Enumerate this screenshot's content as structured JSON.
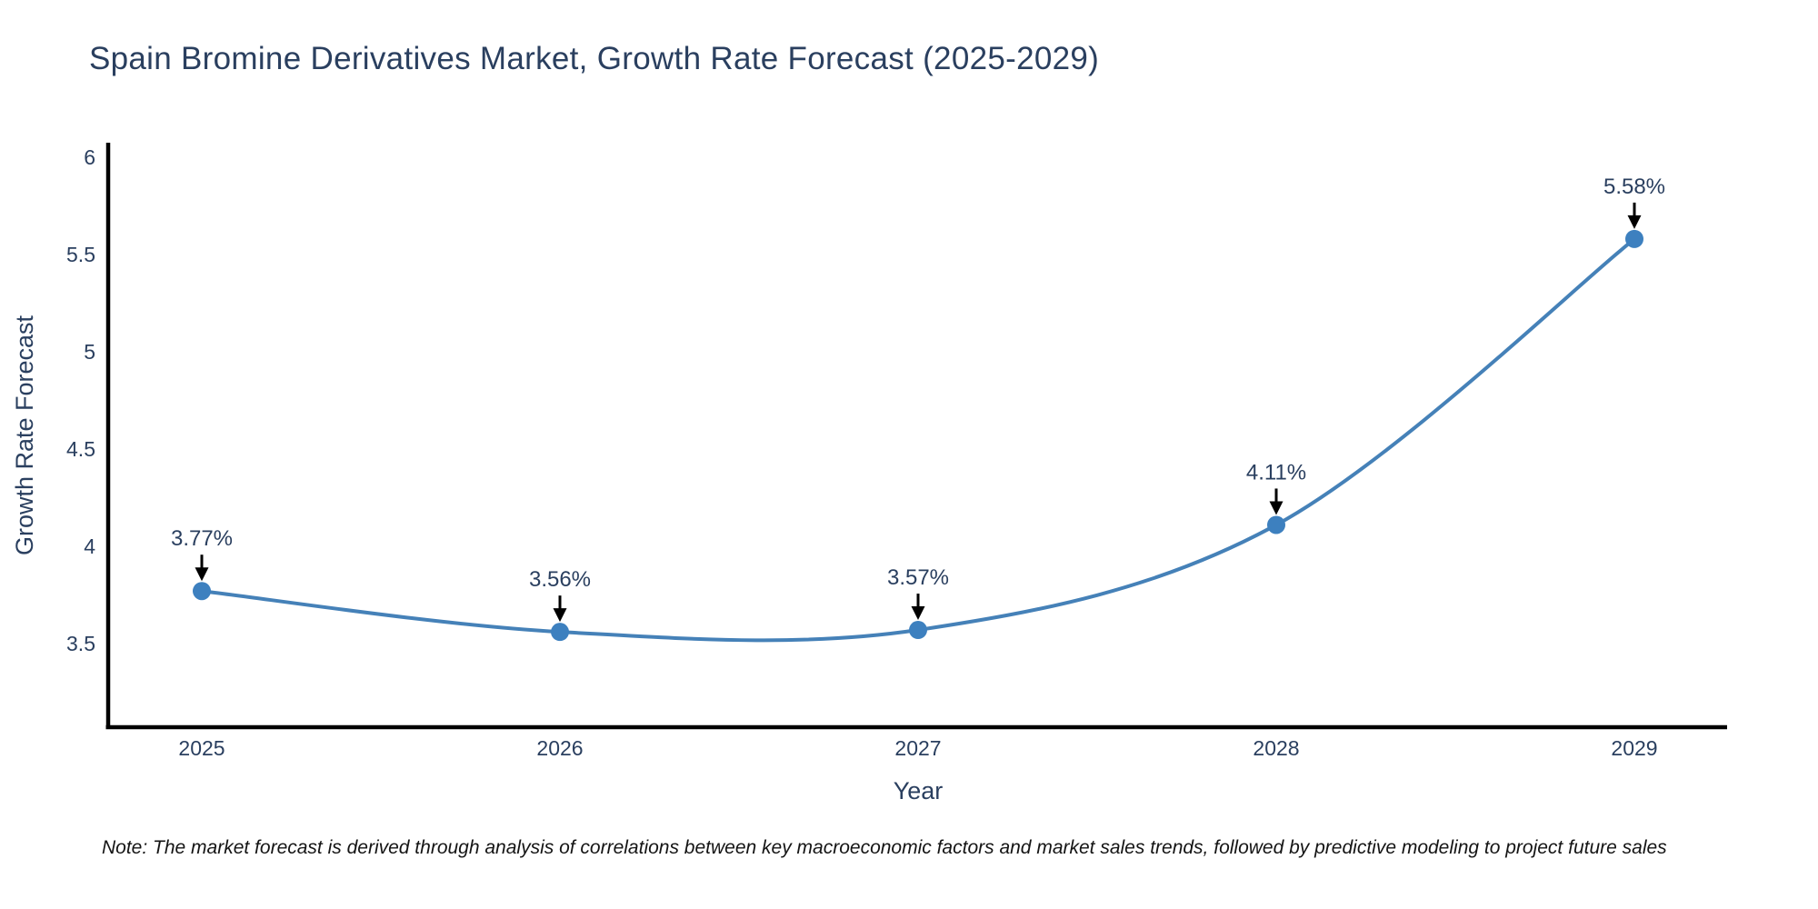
{
  "note": "Note: The market forecast is derived through analysis of correlations between key macroeconomic factors and market sales trends, followed by predictive modeling to project future sales",
  "chart_data": {
    "type": "line",
    "title": "Spain Bromine Derivatives Market, Growth Rate Forecast (2025-2029)",
    "xlabel": "Year",
    "ylabel": "Growth Rate Forecast",
    "x": [
      "2025",
      "2026",
      "2027",
      "2028",
      "2029"
    ],
    "values": [
      3.77,
      3.56,
      3.57,
      4.11,
      5.58
    ],
    "point_labels": [
      "3.77%",
      "3.56%",
      "3.57%",
      "4.11%",
      "5.58%"
    ],
    "line_shape": "spline",
    "markers": true,
    "grid": false,
    "legend": false,
    "ylim": [
      3.06,
      6.07
    ],
    "ytick_values": [
      3.5,
      4,
      4.5,
      5,
      5.5,
      6
    ],
    "ytick_labels": [
      "3.5",
      "4",
      "4.5",
      "5",
      "5.5",
      "6"
    ],
    "colors": {
      "line": "#4581b8",
      "marker": "#3d80bf",
      "axis": "#000000",
      "text": "#2a3f5f",
      "arrow": "#000000",
      "background": "#ffffff"
    }
  }
}
